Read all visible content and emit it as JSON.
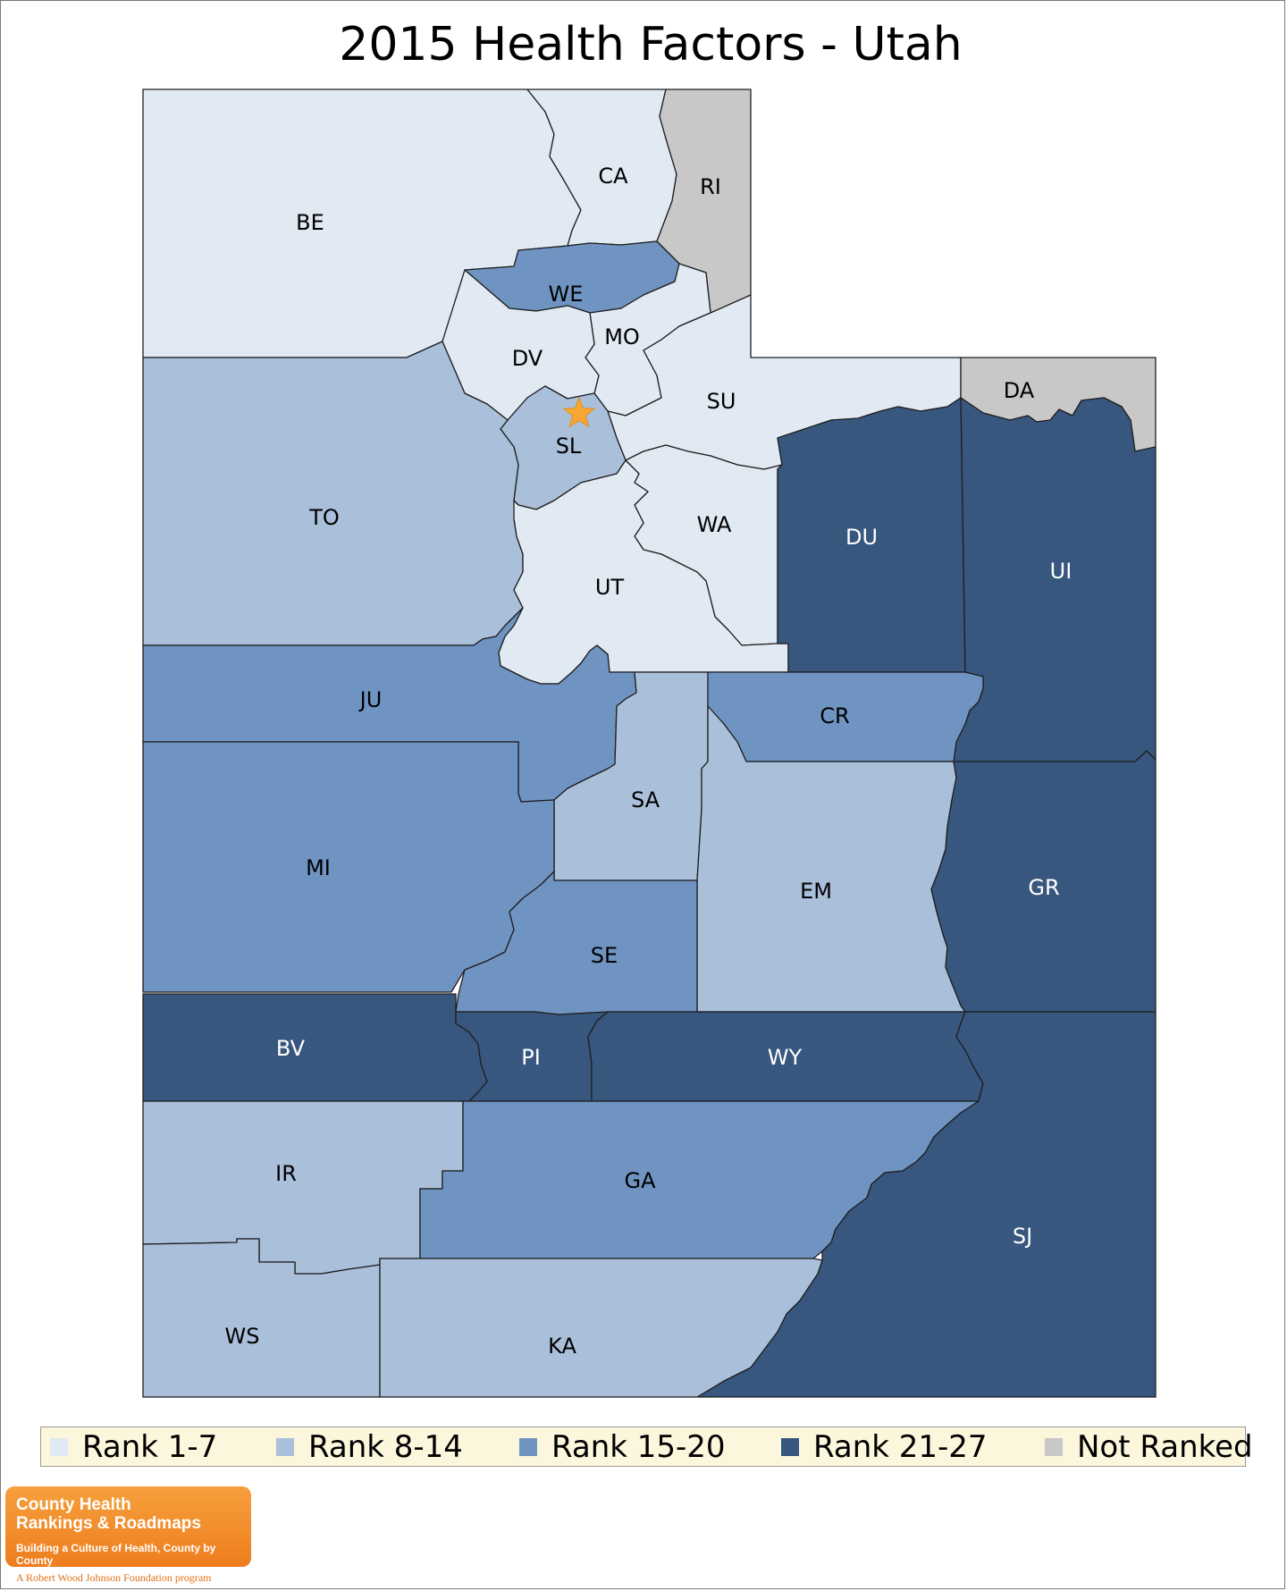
{
  "title": "2015 Health Factors - Utah",
  "colors": {
    "rank_1_7": "#e1e9f3",
    "rank_8_14": "#aabfda",
    "rank_15_20": "#6f94c2",
    "rank_21_27": "#38577f",
    "not_ranked": "#c8c8c8",
    "star": "#f7a734"
  },
  "legend": [
    {
      "label": "Rank 1-7",
      "color": "#e1e9f3"
    },
    {
      "label": "Rank 8-14",
      "color": "#aabfda"
    },
    {
      "label": "Rank 15-20",
      "color": "#6f94c2"
    },
    {
      "label": "Rank 21-27",
      "color": "#38577f"
    },
    {
      "label": "Not Ranked",
      "color": "#c8c8c8"
    }
  ],
  "counties": [
    {
      "abbr": "BE",
      "rank_group": "Rank 1-7"
    },
    {
      "abbr": "CA",
      "rank_group": "Rank 1-7"
    },
    {
      "abbr": "RI",
      "rank_group": "Not Ranked"
    },
    {
      "abbr": "WE",
      "rank_group": "Rank 15-20"
    },
    {
      "abbr": "MO",
      "rank_group": "Rank 1-7"
    },
    {
      "abbr": "DV",
      "rank_group": "Rank 1-7"
    },
    {
      "abbr": "SU",
      "rank_group": "Rank 1-7"
    },
    {
      "abbr": "DA",
      "rank_group": "Not Ranked"
    },
    {
      "abbr": "SL",
      "rank_group": "Rank 8-14"
    },
    {
      "abbr": "TO",
      "rank_group": "Rank 8-14"
    },
    {
      "abbr": "WA",
      "rank_group": "Rank 1-7"
    },
    {
      "abbr": "DU",
      "rank_group": "Rank 21-27"
    },
    {
      "abbr": "UI",
      "rank_group": "Rank 21-27"
    },
    {
      "abbr": "UT",
      "rank_group": "Rank 1-7"
    },
    {
      "abbr": "JU",
      "rank_group": "Rank 15-20"
    },
    {
      "abbr": "CR",
      "rank_group": "Rank 15-20"
    },
    {
      "abbr": "SA",
      "rank_group": "Rank 8-14"
    },
    {
      "abbr": "MI",
      "rank_group": "Rank 15-20"
    },
    {
      "abbr": "EM",
      "rank_group": "Rank 8-14"
    },
    {
      "abbr": "GR",
      "rank_group": "Rank 21-27"
    },
    {
      "abbr": "SE",
      "rank_group": "Rank 15-20"
    },
    {
      "abbr": "BV",
      "rank_group": "Rank 21-27"
    },
    {
      "abbr": "PI",
      "rank_group": "Rank 21-27"
    },
    {
      "abbr": "WY",
      "rank_group": "Rank 21-27"
    },
    {
      "abbr": "IR",
      "rank_group": "Rank 8-14"
    },
    {
      "abbr": "GA",
      "rank_group": "Rank 15-20"
    },
    {
      "abbr": "SJ",
      "rank_group": "Rank 21-27"
    },
    {
      "abbr": "WS",
      "rank_group": "Rank 8-14"
    },
    {
      "abbr": "KA",
      "rank_group": "Rank 8-14"
    }
  ],
  "capital_marker": "star-icon",
  "logo": {
    "line1": "County Health",
    "line2": "Rankings & Roadmaps",
    "tagline": "Building a Culture of Health, County by County",
    "program": "A Robert Wood Johnson Foundation program"
  }
}
